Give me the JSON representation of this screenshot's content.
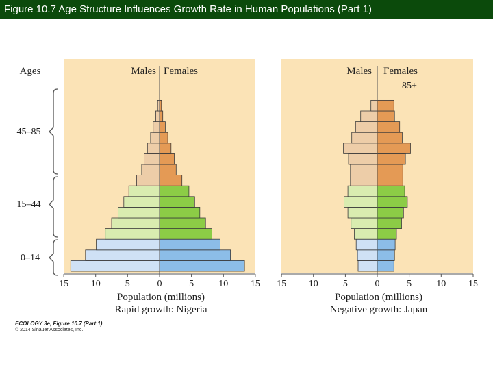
{
  "title": "Figure 10.7  Age Structure Influences Growth Rate in Human Populations (Part 1)",
  "credit": {
    "line1": "ECOLOGY 3e, Figure 10.7 (Part 1)",
    "line2": "© 2014 Sinauer Associates, Inc."
  },
  "colors": {
    "panel_bg": "#fbe3b6",
    "old_male": "#edcda8",
    "old_female": "#e49a55",
    "mid_male": "#d9ecb0",
    "mid_female": "#8ccc46",
    "young_male": "#cfe1f5",
    "young_female": "#8cbde8"
  },
  "chart_data": [
    {
      "type": "bar",
      "orientation": "population-pyramid",
      "ylabel": "Ages",
      "age_group_labels": [
        "0–14",
        "15–44",
        "45–85"
      ],
      "header_left": "Males",
      "header_right": "Females",
      "xlabel": "Population (millions)",
      "caption": "Rapid growth: Nigeria",
      "xlim": [
        -15,
        15
      ],
      "xticks": [
        "15",
        "10",
        "5",
        "0",
        "5",
        "10",
        "15"
      ],
      "series": [
        {
          "name": "Males",
          "values": [
            13.9,
            11.6,
            9.9,
            8.5,
            7.5,
            6.5,
            5.6,
            4.8,
            3.6,
            2.8,
            2.4,
            1.9,
            1.4,
            1.0,
            0.6,
            0.3
          ]
        },
        {
          "name": "Females",
          "values": [
            13.3,
            11.1,
            9.5,
            8.2,
            7.2,
            6.3,
            5.5,
            4.6,
            3.5,
            2.6,
            2.3,
            1.8,
            1.3,
            0.9,
            0.5,
            0.3
          ]
        }
      ]
    },
    {
      "type": "bar",
      "orientation": "population-pyramid",
      "header_left": "Males",
      "header_right": "Females",
      "top_age_label": "85+",
      "xlabel": "Population (millions)",
      "caption": "Negative growth: Japan",
      "xlim": [
        -15,
        15
      ],
      "xticks": [
        "15",
        "10",
        "5",
        "0",
        "5",
        "10",
        "15"
      ],
      "series": [
        {
          "name": "Males",
          "values": [
            3.0,
            3.1,
            3.3,
            3.6,
            4.1,
            4.6,
            5.2,
            4.6,
            4.2,
            4.2,
            4.5,
            5.3,
            4.0,
            3.4,
            2.6,
            1.0
          ]
        },
        {
          "name": "Females",
          "values": [
            2.6,
            2.7,
            2.8,
            3.0,
            3.8,
            4.1,
            4.7,
            4.3,
            4.0,
            4.0,
            4.4,
            5.2,
            3.9,
            3.5,
            2.7,
            2.6
          ]
        }
      ]
    }
  ]
}
